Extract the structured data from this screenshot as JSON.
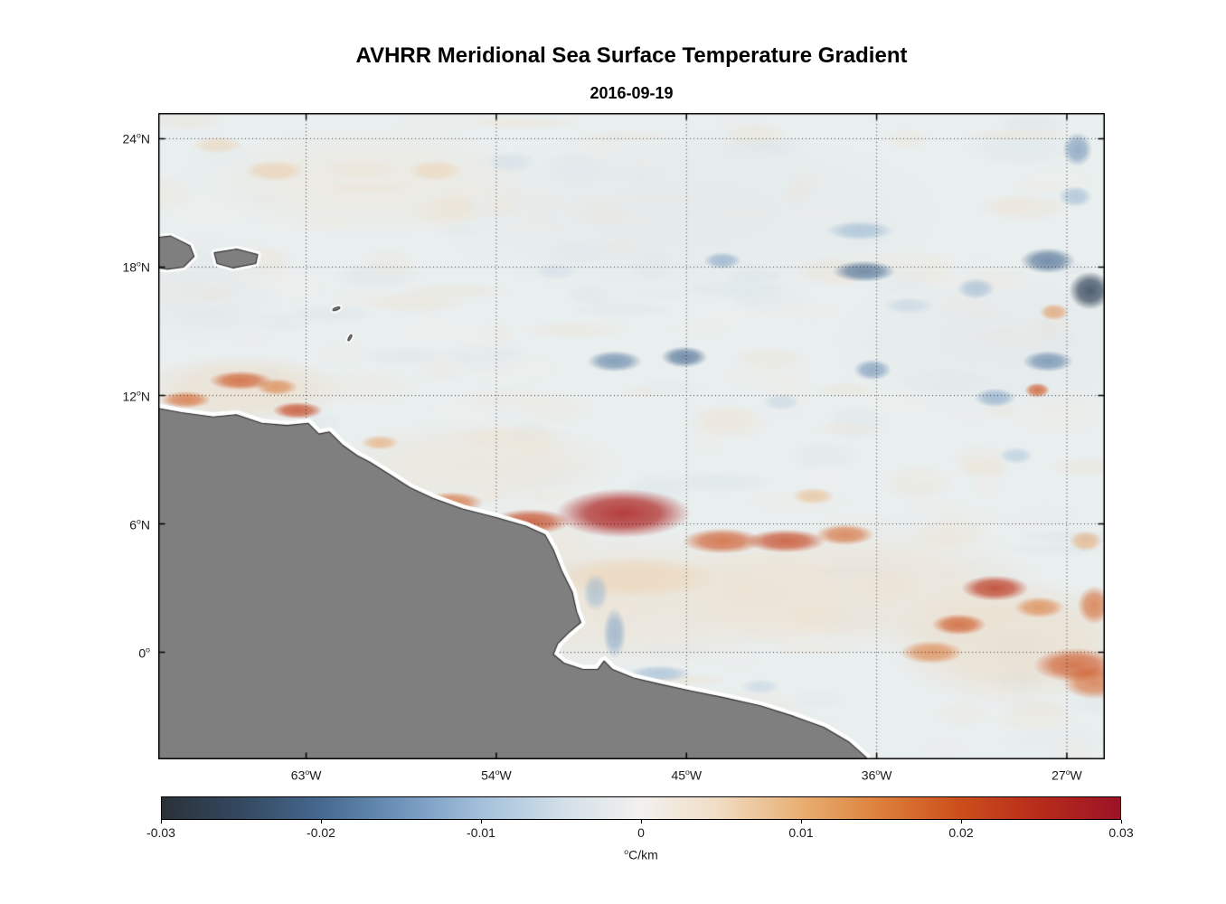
{
  "chart_data": {
    "type": "heatmap",
    "title": "AVHRR Meridional Sea Surface Temperature Gradient",
    "subtitle": "2016-09-19",
    "x_axis": {
      "ticks": [
        "63°W",
        "54°W",
        "45°W",
        "36°W",
        "27°W"
      ],
      "tick_lons": [
        -63,
        -54,
        -45,
        -36,
        -27
      ],
      "range_lon": [
        -70,
        -25.2
      ]
    },
    "y_axis": {
      "ticks": [
        "24°N",
        "18°N",
        "12°N",
        "6°N",
        "0°"
      ],
      "tick_lats": [
        24,
        18,
        12,
        6,
        0
      ],
      "range_lat": [
        -5,
        25.2
      ]
    },
    "colorbar": {
      "label": "°C/km",
      "tick_labels": [
        "-0.03",
        "-0.02",
        "-0.01",
        "0",
        "0.01",
        "0.02",
        "0.03"
      ],
      "tick_values": [
        -0.03,
        -0.02,
        -0.01,
        0,
        0.01,
        0.02,
        0.03
      ],
      "min": -0.03,
      "max": 0.03
    },
    "colormap": [
      [
        0.0,
        "#2a3138"
      ],
      [
        0.08,
        "#33485f"
      ],
      [
        0.167,
        "#45698f"
      ],
      [
        0.25,
        "#6f94bb"
      ],
      [
        0.333,
        "#a3c0da"
      ],
      [
        0.42,
        "#d3e0e8"
      ],
      [
        0.5,
        "#f2f1ee"
      ],
      [
        0.58,
        "#f0ddc4"
      ],
      [
        0.667,
        "#e8af72"
      ],
      [
        0.75,
        "#dd7f3a"
      ],
      [
        0.833,
        "#cc4e1b"
      ],
      [
        0.92,
        "#b52a1b"
      ],
      [
        1.0,
        "#9c1327"
      ]
    ],
    "colors": {
      "ocean_base": "#e9eeee",
      "land": "#7f7f7f",
      "coast_halo": "#ffffff",
      "coastline": "#2a2a2a",
      "grid": "#1e1e1e",
      "frame": "#000000"
    },
    "land_polygon": [
      [
        -71.5,
        11.6
      ],
      [
        -70,
        11.4
      ],
      [
        -68.9,
        11.2
      ],
      [
        -67.4,
        11.0
      ],
      [
        -66.3,
        11.1
      ],
      [
        -65.1,
        10.7
      ],
      [
        -63.9,
        10.6
      ],
      [
        -62.9,
        10.7
      ],
      [
        -62.4,
        10.2
      ],
      [
        -61.9,
        10.3
      ],
      [
        -61.3,
        9.7
      ],
      [
        -60.6,
        9.2
      ],
      [
        -60,
        8.9
      ],
      [
        -59.2,
        8.4
      ],
      [
        -58.1,
        7.7
      ],
      [
        -57,
        7.2
      ],
      [
        -55.6,
        6.7
      ],
      [
        -54,
        6.3
      ],
      [
        -52.6,
        5.9
      ],
      [
        -51.7,
        5.5
      ],
      [
        -51.3,
        4.8
      ],
      [
        -50.9,
        3.8
      ],
      [
        -50.4,
        2.8
      ],
      [
        -50.2,
        1.9
      ],
      [
        -50,
        1.4
      ],
      [
        -50.6,
        0.9
      ],
      [
        -51.1,
        0.4
      ],
      [
        -51.3,
        -0.1
      ],
      [
        -50.8,
        -0.5
      ],
      [
        -49.9,
        -0.8
      ],
      [
        -49.2,
        -0.8
      ],
      [
        -48.9,
        -0.4
      ],
      [
        -48.5,
        -0.8
      ],
      [
        -47.5,
        -1.2
      ],
      [
        -46.2,
        -1.5
      ],
      [
        -44.8,
        -1.8
      ],
      [
        -43.3,
        -2.1
      ],
      [
        -41.5,
        -2.5
      ],
      [
        -39.9,
        -3.0
      ],
      [
        -38.5,
        -3.5
      ],
      [
        -37.3,
        -4.2
      ],
      [
        -36.5,
        -4.9
      ],
      [
        -36.2,
        -6.5
      ],
      [
        -71.5,
        -6.5
      ]
    ],
    "islands": [
      [
        [
          -70.9,
          19.3
        ],
        [
          -69.4,
          19.45
        ],
        [
          -68.5,
          19.0
        ],
        [
          -68.3,
          18.5
        ],
        [
          -68.8,
          18.0
        ],
        [
          -69.6,
          17.9
        ],
        [
          -70.9,
          18.1
        ]
      ],
      [
        [
          -67.35,
          18.67
        ],
        [
          -66.28,
          18.84
        ],
        [
          -65.29,
          18.59
        ],
        [
          -65.38,
          18.17
        ],
        [
          -66.45,
          17.96
        ],
        [
          -67.22,
          18.17
        ]
      ]
    ],
    "islets": [
      {
        "lon": -61.57,
        "lat": 16.05,
        "rx": 0.18,
        "ry": 0.06,
        "rot": -20
      },
      {
        "lon": -60.93,
        "lat": 14.7,
        "rx": 0.16,
        "ry": 0.05,
        "rot": -60
      }
    ],
    "features_format": "[lon, lat, rx_deg, ry_deg, value_C_per_km]",
    "features": [
      [
        -48,
        2.5,
        11,
        3.2,
        0.005
      ],
      [
        -37,
        3,
        9,
        3,
        0.005
      ],
      [
        -29.5,
        0.5,
        6,
        3,
        0.006
      ],
      [
        -55,
        8.8,
        7,
        2,
        0.004
      ],
      [
        -66,
        12.3,
        5,
        1.6,
        0.006
      ],
      [
        -45,
        20.5,
        12,
        4,
        -0.003
      ],
      [
        -30,
        14.5,
        8,
        3.5,
        -0.003
      ],
      [
        -60,
        22,
        8,
        2.5,
        0.003
      ],
      [
        -68,
        17,
        4,
        2.5,
        -0.003
      ],
      [
        -48,
        6.5,
        3.2,
        1.15,
        0.027
      ],
      [
        -52.4,
        6.1,
        1.9,
        0.6,
        0.022
      ],
      [
        -56.1,
        7,
        1.5,
        0.5,
        0.018
      ],
      [
        -43.3,
        5.2,
        1.9,
        0.6,
        0.02
      ],
      [
        -40.3,
        5.2,
        1.9,
        0.55,
        0.022
      ],
      [
        -37.5,
        5.5,
        1.4,
        0.5,
        0.018
      ],
      [
        -59.5,
        9.8,
        0.9,
        0.35,
        0.012
      ],
      [
        -39,
        7.3,
        1,
        0.4,
        0.01
      ],
      [
        -47.5,
        3.5,
        4,
        1,
        0.007
      ],
      [
        -30.4,
        3,
        1.6,
        0.6,
        0.024
      ],
      [
        -32.1,
        1.3,
        1.3,
        0.5,
        0.02
      ],
      [
        -28.3,
        2.1,
        1.2,
        0.5,
        0.016
      ],
      [
        -26.6,
        -0.6,
        2,
        0.8,
        0.02
      ],
      [
        -33.4,
        0,
        1.5,
        0.55,
        0.016
      ],
      [
        -25.7,
        -1.4,
        1.5,
        0.8,
        0.018
      ],
      [
        -25.7,
        2.2,
        0.8,
        0.9,
        0.018
      ],
      [
        -26.1,
        5.2,
        0.8,
        0.5,
        0.012
      ],
      [
        -68.7,
        11.8,
        1.2,
        0.4,
        0.018
      ],
      [
        -66.1,
        12.7,
        1.5,
        0.45,
        0.02
      ],
      [
        -64.4,
        12.4,
        1,
        0.4,
        0.016
      ],
      [
        -63.4,
        11.3,
        1.2,
        0.4,
        0.022
      ],
      [
        -27.6,
        15.9,
        0.7,
        0.4,
        0.014
      ],
      [
        -28.4,
        12.25,
        0.6,
        0.35,
        0.02
      ],
      [
        -64.5,
        22.5,
        1.5,
        0.5,
        0.008
      ],
      [
        -56.9,
        22.5,
        1.3,
        0.5,
        0.007
      ],
      [
        -67.2,
        23.7,
        1.2,
        0.4,
        0.007
      ],
      [
        -48.4,
        13.6,
        1.3,
        0.5,
        -0.018
      ],
      [
        -45.1,
        13.8,
        1.1,
        0.5,
        -0.02
      ],
      [
        -43.3,
        18.3,
        0.9,
        0.4,
        -0.014
      ],
      [
        -36.6,
        17.8,
        1.5,
        0.5,
        -0.02
      ],
      [
        -36.2,
        13.2,
        0.9,
        0.5,
        -0.016
      ],
      [
        -27.9,
        18.3,
        1.3,
        0.6,
        -0.02
      ],
      [
        -25.9,
        16.9,
        1,
        0.9,
        -0.026
      ],
      [
        -26.5,
        23.5,
        0.7,
        0.8,
        -0.016
      ],
      [
        -27.9,
        13.6,
        1.2,
        0.5,
        -0.018
      ],
      [
        -30.4,
        11.9,
        1,
        0.45,
        -0.014
      ],
      [
        -29.4,
        9.2,
        0.8,
        0.4,
        -0.01
      ],
      [
        -49.3,
        2.8,
        0.6,
        0.9,
        -0.012
      ],
      [
        -48.4,
        0.9,
        0.55,
        1.2,
        -0.014
      ],
      [
        -46.3,
        -1,
        1.5,
        0.4,
        -0.012
      ],
      [
        -41.5,
        -1.6,
        0.9,
        0.35,
        -0.008
      ],
      [
        -36.8,
        19.7,
        1.6,
        0.45,
        -0.012
      ],
      [
        -31.3,
        17,
        0.9,
        0.5,
        -0.012
      ],
      [
        -40.5,
        11.7,
        0.9,
        0.4,
        -0.008
      ],
      [
        -51.2,
        17.8,
        1,
        0.4,
        -0.006
      ],
      [
        -26.6,
        21.3,
        0.8,
        0.5,
        -0.012
      ],
      [
        -34.5,
        16.2,
        1.2,
        0.4,
        -0.008
      ],
      [
        -53.3,
        22.9,
        1.2,
        0.5,
        -0.006
      ]
    ],
    "texture": {
      "seed": 20160919,
      "count": 300,
      "amp": 0.01
    }
  }
}
